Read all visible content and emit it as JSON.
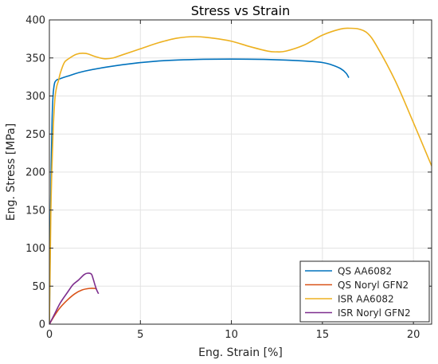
{
  "chart_data": {
    "type": "line",
    "title": "Stress vs Strain",
    "xlabel": "Eng. Strain [%]",
    "ylabel": "Eng. Stress [MPa]",
    "xlim": [
      0,
      21
    ],
    "ylim": [
      0,
      400
    ],
    "xticks": [
      0,
      5,
      10,
      15,
      20
    ],
    "yticks": [
      0,
      50,
      100,
      150,
      200,
      250,
      300,
      350,
      400
    ],
    "grid": true,
    "legend_position": "bottom-right",
    "series": [
      {
        "name": "QS AA6082",
        "color": "#0072BD",
        "x": [
          0,
          0.05,
          0.1,
          0.15,
          0.2,
          0.25,
          0.3,
          0.4,
          0.5,
          1,
          2,
          4,
          6,
          8,
          10,
          12,
          14,
          15,
          15.5,
          16,
          16.3,
          16.45
        ],
        "y": [
          0,
          120,
          210,
          270,
          300,
          312,
          318,
          321,
          322,
          326,
          333,
          341,
          346,
          348,
          348.5,
          348,
          346,
          344,
          341,
          336,
          330,
          324
        ]
      },
      {
        "name": "QS Noryl GFN2",
        "color": "#D95319",
        "x": [
          0,
          0.3,
          0.6,
          1,
          1.4,
          1.8,
          2.2,
          2.5,
          2.6
        ],
        "y": [
          0,
          12,
          22,
          32,
          40,
          45,
          47,
          47,
          46
        ]
      },
      {
        "name": "ISR AA6082",
        "color": "#EDB120",
        "x": [
          0,
          0.05,
          0.1,
          0.2,
          0.3,
          0.4,
          0.5,
          0.6,
          0.8,
          1,
          1.5,
          2,
          2.5,
          3,
          3.5,
          4,
          5,
          6,
          7,
          8,
          9,
          10,
          11,
          12,
          12.5,
          13,
          14,
          15,
          16,
          16.5,
          17,
          17.5,
          18,
          19,
          20,
          21
        ],
        "y": [
          0,
          90,
          170,
          250,
          295,
          312,
          320,
          330,
          343,
          348,
          355,
          356,
          352,
          349,
          350,
          354,
          362,
          370,
          376,
          378,
          376,
          372,
          365,
          359,
          358,
          359,
          367,
          380,
          388,
          389,
          388,
          382,
          365,
          320,
          265,
          208
        ]
      },
      {
        "name": "ISR Noryl GFN2",
        "color": "#7E2F8E",
        "x": [
          0,
          0.3,
          0.6,
          1,
          1.3,
          1.6,
          1.9,
          2.1,
          2.3,
          2.4,
          2.5,
          2.6,
          2.7
        ],
        "y": [
          0,
          14,
          28,
          42,
          52,
          58,
          65,
          67,
          66,
          60,
          52,
          45,
          40
        ]
      }
    ]
  }
}
